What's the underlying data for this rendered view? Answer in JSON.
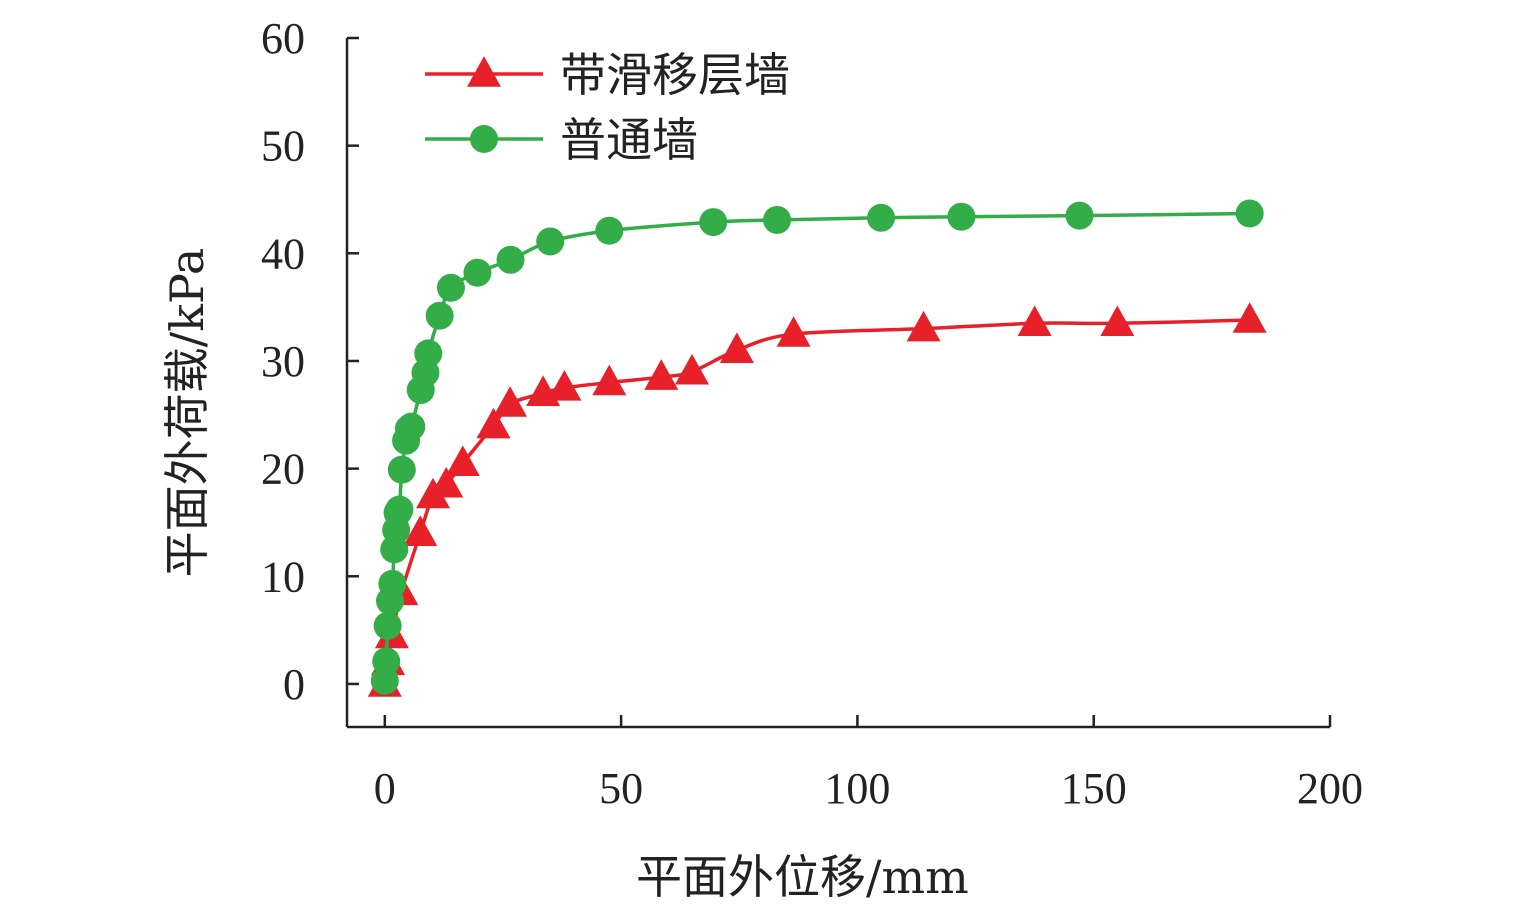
{
  "chart_data": {
    "type": "line",
    "title": "",
    "xlabel": "平面外位移/mm",
    "ylabel": "平面外荷载/kPa",
    "xlim": [
      -8,
      200
    ],
    "ylim": [
      -4,
      60
    ],
    "xticks": [
      0,
      50,
      100,
      150,
      200
    ],
    "yticks": [
      0,
      10,
      20,
      30,
      40,
      50,
      60
    ],
    "grid": false,
    "legend": "top-left",
    "series": [
      {
        "name": "带滑移层墙",
        "marker": "triangle",
        "color": "#e8202a",
        "x": [
          0,
          0.7,
          1.5,
          3.5,
          7.5,
          10.2,
          13,
          16.5,
          23,
          26.5,
          33.5,
          38,
          47.5,
          58.5,
          65,
          74.5,
          86.5,
          114,
          137.5,
          155,
          183
        ],
        "y": [
          0,
          2,
          4.5,
          8.5,
          14,
          17.5,
          18.5,
          20.5,
          24,
          26,
          27,
          27.5,
          28,
          28.5,
          29,
          31,
          32.5,
          33,
          33.5,
          33.5,
          33.8
        ]
      },
      {
        "name": "普通墙",
        "marker": "circle",
        "color": "#32ad48",
        "x": [
          0,
          0.3,
          0.6,
          1.1,
          1.6,
          2,
          2.4,
          2.7,
          3.1,
          3.6,
          4.5,
          5.1,
          5.6,
          7.6,
          8.6,
          9.2,
          11.6,
          14,
          19.6,
          26.6,
          35,
          47.5,
          69.5,
          83,
          105,
          122,
          147,
          183
        ],
        "y": [
          0.3,
          2.1,
          5.4,
          7.7,
          9.3,
          12.5,
          14.3,
          15.9,
          16.2,
          19.9,
          22.6,
          23.7,
          23.9,
          27.3,
          28.9,
          30.7,
          34.2,
          36.8,
          38.2,
          39.4,
          41.1,
          42.1,
          42.9,
          43.1,
          43.3,
          43.4,
          43.5,
          43.7
        ]
      }
    ]
  }
}
